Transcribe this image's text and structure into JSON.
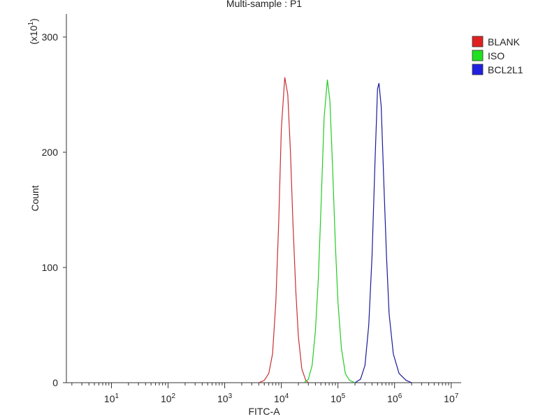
{
  "chart_data": {
    "type": "histogram-overlay",
    "title": "Multi-sample : P1",
    "x_label": "FITC-A",
    "y_label": "Count",
    "y_multiplier": {
      "prefix": "(x10",
      "exponent": "1",
      "suffix": ")"
    },
    "xscale": "log",
    "xlim": [
      1.6,
      15000000
    ],
    "ylim": [
      0,
      320
    ],
    "xticks": [
      {
        "value": 10,
        "label": "10",
        "exponent": "1"
      },
      {
        "value": 100,
        "label": "10",
        "exponent": "2"
      },
      {
        "value": 1000,
        "label": "10",
        "exponent": "3"
      },
      {
        "value": 10000,
        "label": "10",
        "exponent": "4"
      },
      {
        "value": 100000,
        "label": "10",
        "exponent": "5"
      },
      {
        "value": 1000000,
        "label": "10",
        "exponent": "6"
      },
      {
        "value": 10000000,
        "label": "10",
        "exponent": "7"
      }
    ],
    "yticks": [
      0,
      100,
      200,
      300
    ],
    "legend": "right",
    "series": [
      {
        "name": "BLANK",
        "color": "#c83030",
        "legend_color": "#e02020",
        "x": [
          4000,
          5000,
          6000,
          7000,
          8000,
          9000,
          10000,
          11500,
          13000,
          14500,
          16000,
          18000,
          20000,
          23000,
          27000,
          30000
        ],
        "values": [
          0,
          2,
          8,
          25,
          70,
          140,
          220,
          265,
          250,
          200,
          140,
          80,
          40,
          12,
          2,
          0
        ]
      },
      {
        "name": "ISO",
        "color": "#22cc22",
        "legend_color": "#20e020",
        "x": [
          25000,
          30000,
          35000,
          40000,
          45000,
          50000,
          57000,
          65000,
          72000,
          80000,
          90000,
          100000,
          115000,
          135000,
          160000,
          200000
        ],
        "values": [
          0,
          3,
          15,
          45,
          90,
          150,
          230,
          263,
          245,
          190,
          120,
          70,
          30,
          8,
          2,
          0
        ]
      },
      {
        "name": "BCL2L1",
        "color": "#1a1a99",
        "legend_color": "#2020e0",
        "x": [
          200000,
          250000,
          300000,
          350000,
          400000,
          450000,
          500000,
          530000,
          580000,
          650000,
          720000,
          800000,
          950000,
          1200000,
          1600000,
          2000000
        ],
        "values": [
          0,
          3,
          15,
          50,
          110,
          190,
          255,
          260,
          240,
          170,
          110,
          60,
          25,
          8,
          2,
          0
        ]
      }
    ]
  }
}
